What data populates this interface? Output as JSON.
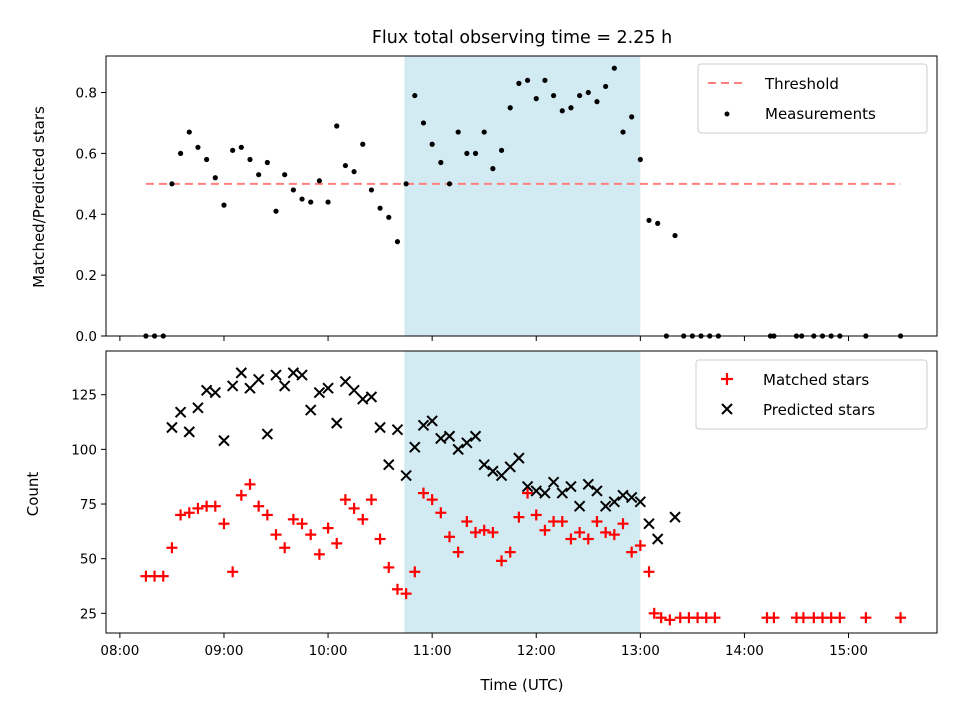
{
  "chart_data": [
    {
      "type": "scatter",
      "title": "Flux total observing time = 2.25 h",
      "ylabel": "Matched/Predicted stars",
      "xlabel": "",
      "ylim": [
        0,
        0.92
      ],
      "yticks": [
        0.0,
        0.2,
        0.4,
        0.6,
        0.8
      ],
      "ytick_labels": [
        "0.0",
        "0.2",
        "0.4",
        "0.6",
        "0.8"
      ],
      "shaded_span": {
        "start": "10:44",
        "end": "13:00",
        "color": "#add8e6"
      },
      "threshold": {
        "y": 0.5,
        "x_start": "08:15",
        "x_end": "15:30",
        "color": "#ff7f7f",
        "style": "dashed"
      },
      "legend": {
        "position": "upper right",
        "entries": [
          "Threshold",
          "Measurements"
        ]
      },
      "series": [
        {
          "name": "Measurements",
          "marker": "dot",
          "color": "#000000",
          "points": [
            [
              "08:15",
              0.0
            ],
            [
              "08:20",
              0.0
            ],
            [
              "08:25",
              0.0
            ],
            [
              "08:30",
              0.5
            ],
            [
              "08:35",
              0.6
            ],
            [
              "08:40",
              0.67
            ],
            [
              "08:45",
              0.62
            ],
            [
              "08:50",
              0.58
            ],
            [
              "08:55",
              0.52
            ],
            [
              "09:00",
              0.43
            ],
            [
              "09:05",
              0.61
            ],
            [
              "09:10",
              0.62
            ],
            [
              "09:15",
              0.58
            ],
            [
              "09:20",
              0.53
            ],
            [
              "09:25",
              0.57
            ],
            [
              "09:30",
              0.41
            ],
            [
              "09:35",
              0.53
            ],
            [
              "09:40",
              0.48
            ],
            [
              "09:45",
              0.45
            ],
            [
              "09:50",
              0.44
            ],
            [
              "09:55",
              0.51
            ],
            [
              "10:00",
              0.44
            ],
            [
              "10:05",
              0.69
            ],
            [
              "10:10",
              0.56
            ],
            [
              "10:15",
              0.54
            ],
            [
              "10:20",
              0.63
            ],
            [
              "10:25",
              0.48
            ],
            [
              "10:30",
              0.42
            ],
            [
              "10:35",
              0.39
            ],
            [
              "10:40",
              0.31
            ],
            [
              "10:45",
              0.5
            ],
            [
              "10:50",
              0.79
            ],
            [
              "10:55",
              0.7
            ],
            [
              "11:00",
              0.63
            ],
            [
              "11:05",
              0.57
            ],
            [
              "11:10",
              0.5
            ],
            [
              "11:15",
              0.67
            ],
            [
              "11:20",
              0.6
            ],
            [
              "11:25",
              0.6
            ],
            [
              "11:30",
              0.67
            ],
            [
              "11:35",
              0.55
            ],
            [
              "11:40",
              0.61
            ],
            [
              "11:45",
              0.75
            ],
            [
              "11:50",
              0.83
            ],
            [
              "11:55",
              0.84
            ],
            [
              "12:00",
              0.78
            ],
            [
              "12:05",
              0.84
            ],
            [
              "12:10",
              0.79
            ],
            [
              "12:15",
              0.74
            ],
            [
              "12:20",
              0.75
            ],
            [
              "12:25",
              0.79
            ],
            [
              "12:30",
              0.8
            ],
            [
              "12:35",
              0.77
            ],
            [
              "12:40",
              0.82
            ],
            [
              "12:45",
              0.88
            ],
            [
              "12:50",
              0.67
            ],
            [
              "12:55",
              0.72
            ],
            [
              "13:00",
              0.58
            ],
            [
              "13:05",
              0.38
            ],
            [
              "13:10",
              0.37
            ],
            [
              "13:15",
              0.0
            ],
            [
              "13:20",
              0.33
            ],
            [
              "13:25",
              0.0
            ],
            [
              "13:30",
              0.0
            ],
            [
              "13:35",
              0.0
            ],
            [
              "13:40",
              0.0
            ],
            [
              "13:45",
              0.0
            ],
            [
              "14:15",
              0.0
            ],
            [
              "14:17",
              0.0
            ],
            [
              "14:30",
              0.0
            ],
            [
              "14:33",
              0.0
            ],
            [
              "14:40",
              0.0
            ],
            [
              "14:45",
              0.0
            ],
            [
              "14:50",
              0.0
            ],
            [
              "14:55",
              0.0
            ],
            [
              "15:10",
              0.0
            ],
            [
              "15:30",
              0.0
            ]
          ]
        }
      ]
    },
    {
      "type": "scatter",
      "title": "",
      "ylabel": "Count",
      "xlabel": "Time (UTC)",
      "ylim": [
        16,
        145
      ],
      "yticks": [
        25,
        50,
        75,
        100,
        125
      ],
      "ytick_labels": [
        "25",
        "50",
        "75",
        "100",
        "125"
      ],
      "xlim": [
        "07:52",
        "15:51"
      ],
      "xticks": [
        "08:00",
        "09:00",
        "10:00",
        "11:00",
        "12:00",
        "13:00",
        "14:00",
        "15:00"
      ],
      "xtick_labels": [
        "08:00",
        "09:00",
        "10:00",
        "11:00",
        "12:00",
        "13:00",
        "14:00",
        "15:00"
      ],
      "shaded_span": {
        "start": "10:44",
        "end": "13:00",
        "color": "#add8e6"
      },
      "legend": {
        "position": "upper right",
        "entries": [
          "Matched stars",
          "Predicted stars"
        ]
      },
      "series": [
        {
          "name": "Matched stars",
          "marker": "plus",
          "color": "#ff0000",
          "points": [
            [
              "08:15",
              42
            ],
            [
              "08:20",
              42
            ],
            [
              "08:25",
              42
            ],
            [
              "08:30",
              55
            ],
            [
              "08:35",
              70
            ],
            [
              "08:40",
              71
            ],
            [
              "08:45",
              73
            ],
            [
              "08:50",
              74
            ],
            [
              "08:55",
              74
            ],
            [
              "09:00",
              66
            ],
            [
              "09:05",
              44
            ],
            [
              "09:10",
              79
            ],
            [
              "09:15",
              84
            ],
            [
              "09:20",
              74
            ],
            [
              "09:25",
              70
            ],
            [
              "09:30",
              61
            ],
            [
              "09:35",
              55
            ],
            [
              "09:40",
              68
            ],
            [
              "09:45",
              66
            ],
            [
              "09:50",
              61
            ],
            [
              "09:55",
              52
            ],
            [
              "10:00",
              64
            ],
            [
              "10:05",
              57
            ],
            [
              "10:10",
              77
            ],
            [
              "10:15",
              73
            ],
            [
              "10:20",
              68
            ],
            [
              "10:25",
              77
            ],
            [
              "10:30",
              59
            ],
            [
              "10:35",
              46
            ],
            [
              "10:40",
              36
            ],
            [
              "10:45",
              34
            ],
            [
              "10:50",
              44
            ],
            [
              "10:55",
              80
            ],
            [
              "11:00",
              77
            ],
            [
              "11:05",
              71
            ],
            [
              "11:10",
              60
            ],
            [
              "11:15",
              53
            ],
            [
              "11:20",
              67
            ],
            [
              "11:25",
              62
            ],
            [
              "11:30",
              63
            ],
            [
              "11:35",
              62
            ],
            [
              "11:40",
              49
            ],
            [
              "11:45",
              53
            ],
            [
              "11:50",
              69
            ],
            [
              "11:55",
              80
            ],
            [
              "12:00",
              70
            ],
            [
              "12:05",
              63
            ],
            [
              "12:10",
              67
            ],
            [
              "12:15",
              67
            ],
            [
              "12:20",
              59
            ],
            [
              "12:25",
              62
            ],
            [
              "12:30",
              59
            ],
            [
              "12:35",
              67
            ],
            [
              "12:40",
              62
            ],
            [
              "12:45",
              61
            ],
            [
              "12:50",
              66
            ],
            [
              "12:55",
              53
            ],
            [
              "13:00",
              56
            ],
            [
              "13:05",
              44
            ],
            [
              "13:08",
              25
            ],
            [
              "13:12",
              23
            ],
            [
              "13:17",
              22
            ],
            [
              "13:23",
              23
            ],
            [
              "13:28",
              23
            ],
            [
              "13:33",
              23
            ],
            [
              "13:38",
              23
            ],
            [
              "13:43",
              23
            ],
            [
              "14:13",
              23
            ],
            [
              "14:17",
              23
            ],
            [
              "14:30",
              23
            ],
            [
              "14:34",
              23
            ],
            [
              "14:40",
              23
            ],
            [
              "14:45",
              23
            ],
            [
              "14:50",
              23
            ],
            [
              "14:55",
              23
            ],
            [
              "15:10",
              23
            ],
            [
              "15:30",
              23
            ]
          ]
        },
        {
          "name": "Predicted stars",
          "marker": "x",
          "color": "#000000",
          "points": [
            [
              "08:30",
              110
            ],
            [
              "08:35",
              117
            ],
            [
              "08:40",
              108
            ],
            [
              "08:45",
              119
            ],
            [
              "08:50",
              127
            ],
            [
              "08:55",
              126
            ],
            [
              "09:00",
              104
            ],
            [
              "09:05",
              129
            ],
            [
              "09:10",
              135
            ],
            [
              "09:15",
              128
            ],
            [
              "09:20",
              132
            ],
            [
              "09:25",
              107
            ],
            [
              "09:30",
              134
            ],
            [
              "09:35",
              129
            ],
            [
              "09:40",
              135
            ],
            [
              "09:45",
              134
            ],
            [
              "09:50",
              118
            ],
            [
              "09:55",
              126
            ],
            [
              "10:00",
              128
            ],
            [
              "10:05",
              112
            ],
            [
              "10:10",
              131
            ],
            [
              "10:15",
              127
            ],
            [
              "10:20",
              123
            ],
            [
              "10:25",
              124
            ],
            [
              "10:30",
              110
            ],
            [
              "10:35",
              93
            ],
            [
              "10:40",
              109
            ],
            [
              "10:45",
              88
            ],
            [
              "10:50",
              101
            ],
            [
              "10:55",
              111
            ],
            [
              "11:00",
              113
            ],
            [
              "11:05",
              105
            ],
            [
              "11:10",
              106
            ],
            [
              "11:15",
              100
            ],
            [
              "11:20",
              103
            ],
            [
              "11:25",
              106
            ],
            [
              "11:30",
              93
            ],
            [
              "11:35",
              90
            ],
            [
              "11:40",
              88
            ],
            [
              "11:45",
              92
            ],
            [
              "11:50",
              96
            ],
            [
              "11:55",
              83
            ],
            [
              "12:00",
              81
            ],
            [
              "12:05",
              80
            ],
            [
              "12:10",
              85
            ],
            [
              "12:15",
              80
            ],
            [
              "12:20",
              83
            ],
            [
              "12:25",
              74
            ],
            [
              "12:30",
              84
            ],
            [
              "12:35",
              81
            ],
            [
              "12:40",
              74
            ],
            [
              "12:45",
              76
            ],
            [
              "12:50",
              79
            ],
            [
              "12:55",
              78
            ],
            [
              "13:00",
              76
            ],
            [
              "13:05",
              66
            ],
            [
              "13:10",
              59
            ],
            [
              "13:20",
              69
            ]
          ]
        }
      ]
    }
  ]
}
